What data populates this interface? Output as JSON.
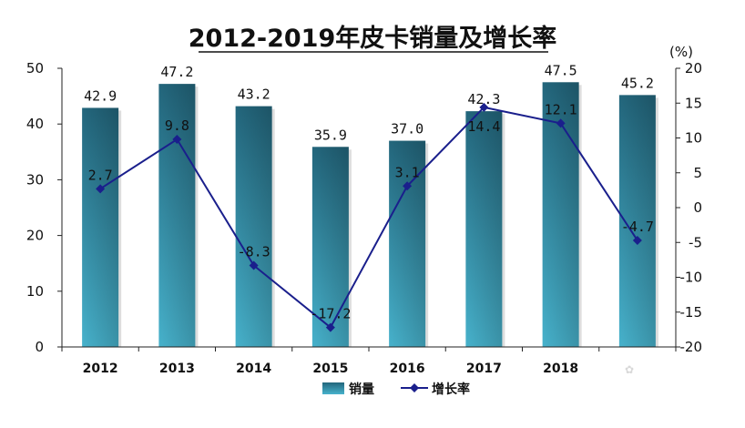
{
  "chart_data": {
    "type": "bar",
    "title": "2012-2019年皮卡销量及增长率",
    "categories": [
      "2012",
      "2013",
      "2014",
      "2015",
      "2016",
      "2017",
      "2018",
      ""
    ],
    "series": [
      {
        "name": "销量",
        "type": "bar",
        "axis": "left",
        "values": [
          42.9,
          47.2,
          43.2,
          35.9,
          37.0,
          42.3,
          47.5,
          45.2
        ],
        "labels": [
          "42.9",
          "47.2",
          "43.2",
          "35.9",
          "37.0",
          "42.3",
          "47.5",
          "45.2"
        ],
        "color": "#2a7f96"
      },
      {
        "name": "增长率",
        "type": "line",
        "axis": "right",
        "values": [
          2.7,
          9.8,
          -8.3,
          -17.2,
          3.1,
          14.4,
          12.1,
          -4.7
        ],
        "labels": [
          "2.7",
          "9.8",
          "-8.3",
          "-17.2",
          "3.1",
          "14.4",
          "12.1",
          "-4.7"
        ],
        "color": "#1a1f8c"
      }
    ],
    "y_left": {
      "ylim": [
        0,
        50
      ],
      "ticks": [
        "0",
        "10",
        "20",
        "30",
        "40",
        "50"
      ]
    },
    "y_right": {
      "ylim": [
        -20,
        20
      ],
      "ticks": [
        "-20",
        "-15",
        "-10",
        "-5",
        "0",
        "5",
        "10",
        "15",
        "20"
      ],
      "unit": "(%)"
    },
    "grid": false,
    "legend_position": "bottom"
  }
}
